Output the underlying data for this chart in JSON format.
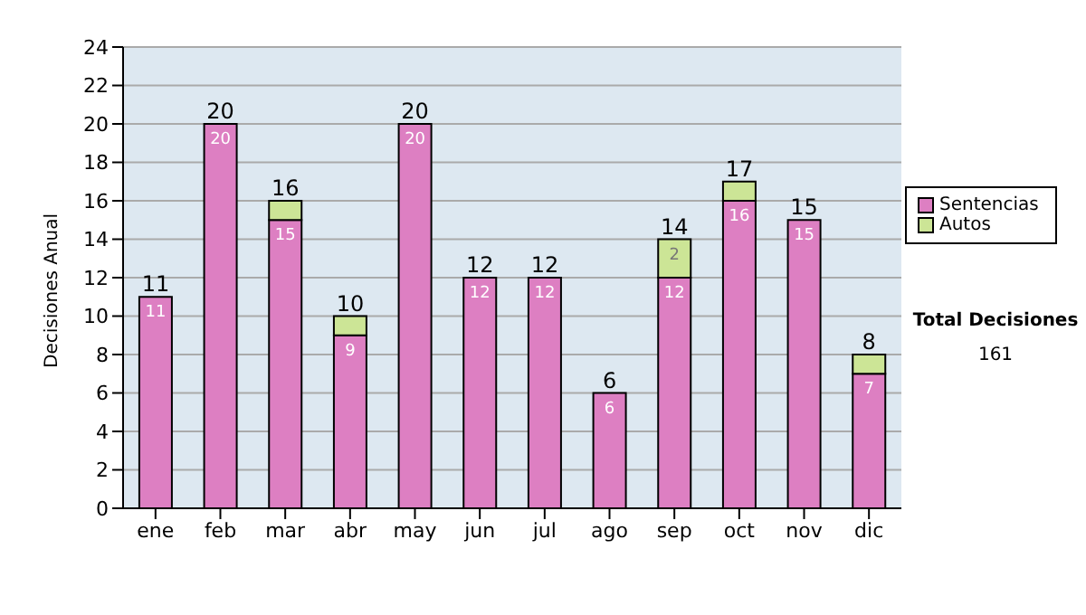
{
  "chart_data": {
    "type": "bar",
    "ylabel": "Decisiones Anual",
    "categories": [
      "ene",
      "feb",
      "mar",
      "abr",
      "may",
      "jun",
      "jul",
      "ago",
      "sep",
      "oct",
      "nov",
      "dic"
    ],
    "series": [
      {
        "name": "Sentencias",
        "color": "#dd7fc2",
        "values": [
          11,
          20,
          15,
          9,
          20,
          12,
          12,
          6,
          12,
          16,
          15,
          7
        ],
        "value_labels": [
          "11",
          "20",
          "15",
          "9",
          "20",
          "12",
          "12",
          "6",
          "12",
          "16",
          "15",
          "7"
        ]
      },
      {
        "name": "Autos",
        "color": "#cce596",
        "values": [
          0,
          0,
          1,
          1,
          0,
          0,
          0,
          0,
          2,
          1,
          0,
          1
        ],
        "value_labels": [
          null,
          null,
          null,
          null,
          null,
          null,
          null,
          null,
          "2",
          null,
          null,
          null
        ]
      }
    ],
    "stacked": true,
    "totals": [
      "11",
      "20",
      "16",
      "10",
      "20",
      "12",
      "12",
      "6",
      "14",
      "17",
      "15",
      "8"
    ],
    "ylim": [
      0,
      24
    ],
    "yticks": [
      0,
      2,
      4,
      6,
      8,
      10,
      12,
      14,
      16,
      18,
      20,
      22,
      24
    ],
    "grid": "y",
    "legend": "right",
    "annotations": [
      "Total Decisiones",
      "161"
    ]
  }
}
